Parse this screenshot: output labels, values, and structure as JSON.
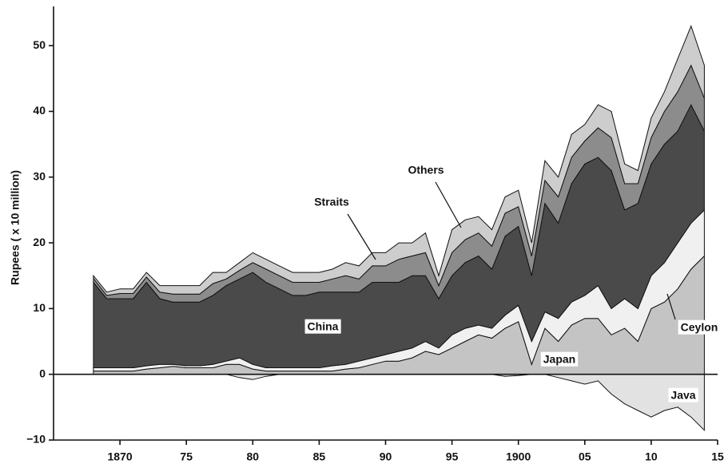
{
  "chart_data": {
    "type": "stacked_area",
    "y_label": "Rupees ( x 10 million)",
    "x": [
      1868,
      1869,
      1870,
      1871,
      1872,
      1873,
      1874,
      1875,
      1876,
      1877,
      1878,
      1879,
      1880,
      1881,
      1882,
      1883,
      1884,
      1885,
      1886,
      1887,
      1888,
      1889,
      1890,
      1891,
      1892,
      1893,
      1894,
      1895,
      1896,
      1897,
      1898,
      1899,
      1900,
      1901,
      1902,
      1903,
      1904,
      1905,
      1906,
      1907,
      1908,
      1909,
      1910,
      1911,
      1912,
      1913,
      1914
    ],
    "series": [
      {
        "name": "Java",
        "color": "#e2e2e2",
        "values": [
          0,
          0,
          0,
          0,
          0,
          0,
          0,
          0,
          0,
          0,
          0,
          -0.5,
          -0.8,
          -0.3,
          0,
          0,
          0,
          0,
          0,
          0,
          0,
          0,
          0,
          0,
          0,
          0,
          0,
          0,
          0,
          0,
          0,
          -0.3,
          -0.2,
          0,
          0,
          -0.5,
          -1,
          -1.5,
          -1,
          -3,
          -4.5,
          -5.5,
          -6.5,
          -5.5,
          -5,
          -6.5,
          -8.5
        ]
      },
      {
        "name": "Japan",
        "color": "#c4c4c4",
        "values": [
          0.5,
          0.5,
          0.5,
          0.5,
          0.8,
          1,
          1.2,
          1,
          1,
          1,
          1.5,
          1.5,
          0.8,
          0.5,
          0.5,
          0.5,
          0.5,
          0.5,
          0.5,
          0.8,
          1,
          1.5,
          2,
          2,
          2.5,
          3.5,
          3,
          4,
          5,
          6,
          5.5,
          7,
          8,
          1.5,
          7,
          5,
          7.5,
          8.5,
          8.5,
          6,
          7,
          5,
          10,
          11,
          13,
          16,
          18
        ]
      },
      {
        "name": "Ceylon",
        "color": "#f0f0f0",
        "values": [
          0.5,
          0.5,
          0.5,
          0.5,
          0.5,
          0.5,
          0.3,
          0.3,
          0.3,
          0.5,
          0.5,
          1,
          0.7,
          0.5,
          0.5,
          0.5,
          0.5,
          0.5,
          0.8,
          0.7,
          1,
          1,
          1,
          1.5,
          1.5,
          1.5,
          1,
          2,
          2,
          1.5,
          1.5,
          2,
          2.5,
          3.5,
          2.5,
          3.5,
          3.5,
          3.5,
          5,
          4,
          4.5,
          5,
          5,
          6,
          7,
          7,
          7
        ]
      },
      {
        "name": "China",
        "color": "#4a4a4a",
        "values": [
          13,
          10.5,
          10.5,
          10.5,
          12.7,
          10,
          9.5,
          9.7,
          9.7,
          10.5,
          11.5,
          12,
          14,
          13,
          12,
          11,
          11,
          11.5,
          11.2,
          11,
          10.5,
          11.5,
          11,
          10.5,
          11,
          10,
          7.5,
          9,
          10,
          10.5,
          9,
          12,
          12,
          10,
          16.5,
          14.5,
          18,
          20,
          19.5,
          21,
          13.5,
          16,
          17,
          18,
          17,
          18,
          12
        ]
      },
      {
        "name": "Straits",
        "color": "#8c8c8c",
        "values": [
          0.6,
          0.5,
          0.8,
          0.8,
          0.8,
          1,
          1.2,
          1.2,
          1.2,
          1.8,
          1,
          1.3,
          1.5,
          2,
          2,
          2,
          2,
          1.5,
          2,
          2.5,
          2,
          2.5,
          2.5,
          3.5,
          3,
          3.5,
          2,
          3.5,
          3.5,
          3.5,
          3.5,
          3.5,
          3,
          3,
          3.5,
          4,
          4,
          3.5,
          4.5,
          5,
          4,
          3,
          4,
          5,
          6,
          6,
          5
        ]
      },
      {
        "name": "Others",
        "color": "#cdcdcd",
        "values": [
          0.4,
          0.5,
          0.7,
          0.7,
          0.7,
          1,
          1.3,
          1.3,
          1.3,
          1.7,
          1,
          1.2,
          1.5,
          1.5,
          1.5,
          1.5,
          1.5,
          1.5,
          1.5,
          2,
          2,
          2,
          2,
          2.5,
          2,
          3,
          1.5,
          3.5,
          3,
          2.5,
          2.5,
          2.5,
          2.5,
          2,
          3,
          3,
          3.5,
          2.5,
          3.5,
          4,
          3,
          2,
          3,
          3,
          5,
          6,
          5
        ]
      }
    ],
    "xlim": [
      1865,
      1915
    ],
    "xticks": [
      1870,
      {
        "value": 1875,
        "label": "75"
      },
      {
        "value": 1880,
        "label": "80"
      },
      {
        "value": 1885,
        "label": "85"
      },
      {
        "value": 1890,
        "label": "90"
      },
      {
        "value": 1895,
        "label": "95"
      },
      1900,
      {
        "value": 1905,
        "label": "05"
      },
      {
        "value": 1910,
        "label": "10"
      },
      {
        "value": 1915,
        "label": "15"
      }
    ],
    "ylim": [
      -10,
      55
    ],
    "yticks": [
      {
        "value": -10,
        "label": "−10"
      },
      0,
      10,
      20,
      30,
      40,
      50
    ]
  }
}
